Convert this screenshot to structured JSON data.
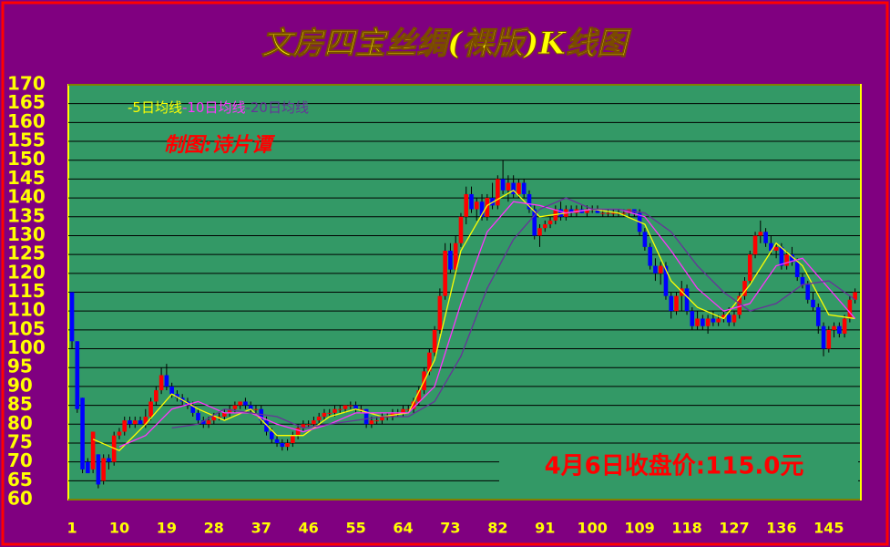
{
  "chart_data": {
    "type": "candlestick",
    "title": "文房四宝丝绸(裸版)K线图",
    "credit": "制图:诗片谭",
    "annotation": "4月6日收盘价:115.0元",
    "up_color": "#ff0000",
    "down_color": "#0000ff",
    "grid": true,
    "xlim": [
      0.3,
      151.1
    ],
    "xticks": [
      1,
      10,
      19,
      28,
      37,
      46,
      55,
      64,
      73,
      82,
      91,
      100,
      109,
      118,
      127,
      136,
      145
    ],
    "ylim": [
      60,
      170
    ],
    "yticks": [
      60,
      65,
      70,
      75,
      80,
      85,
      90,
      95,
      100,
      105,
      110,
      115,
      120,
      125,
      130,
      135,
      140,
      145,
      150,
      155,
      160,
      165,
      170
    ],
    "candles": [
      [
        115,
        115,
        100,
        102
      ],
      [
        102,
        102,
        83,
        84
      ],
      [
        87,
        87,
        67,
        68
      ],
      [
        70,
        71,
        67,
        67
      ],
      [
        68,
        78,
        67,
        78
      ],
      [
        72,
        72,
        63,
        64
      ],
      [
        65,
        72,
        64,
        71
      ],
      [
        71,
        72,
        68,
        70
      ],
      [
        70,
        78,
        69,
        77
      ],
      [
        77,
        79,
        76,
        78
      ],
      [
        78,
        82,
        77,
        81
      ],
      [
        81,
        82,
        79,
        80
      ],
      [
        80,
        82,
        79,
        81
      ],
      [
        81,
        82,
        80,
        80
      ],
      [
        80,
        84,
        79,
        82
      ],
      [
        82,
        87,
        81,
        86
      ],
      [
        86,
        90,
        85,
        89
      ],
      [
        89,
        95,
        88,
        93
      ],
      [
        93,
        96,
        89,
        90
      ],
      [
        90,
        91,
        87,
        88
      ],
      [
        88,
        89,
        86,
        87
      ],
      [
        87,
        88,
        85,
        86
      ],
      [
        86,
        87,
        84,
        85
      ],
      [
        85,
        86,
        82,
        83
      ],
      [
        83,
        84,
        80,
        81
      ],
      [
        81,
        82,
        79,
        80
      ],
      [
        80,
        82,
        79,
        81
      ],
      [
        81,
        83,
        80,
        82
      ],
      [
        82,
        83,
        81,
        82
      ],
      [
        82,
        84,
        81,
        83
      ],
      [
        83,
        85,
        82,
        84
      ],
      [
        84,
        86,
        83,
        85
      ],
      [
        85,
        86,
        84,
        86
      ],
      [
        86,
        87,
        84,
        85
      ],
      [
        85,
        86,
        83,
        84
      ],
      [
        84,
        85,
        83,
        84
      ],
      [
        84,
        85,
        80,
        81
      ],
      [
        81,
        82,
        77,
        78
      ],
      [
        78,
        79,
        75,
        76
      ],
      [
        76,
        77,
        74,
        75
      ],
      [
        75,
        76,
        73,
        74
      ],
      [
        74,
        76,
        73,
        75
      ],
      [
        75,
        78,
        74,
        77
      ],
      [
        77,
        80,
        76,
        79
      ],
      [
        79,
        81,
        78,
        80
      ],
      [
        80,
        81,
        79,
        80
      ],
      [
        80,
        82,
        79,
        81
      ],
      [
        81,
        83,
        80,
        82
      ],
      [
        82,
        84,
        81,
        83
      ],
      [
        83,
        84,
        82,
        83
      ],
      [
        83,
        85,
        82,
        84
      ],
      [
        84,
        85,
        83,
        84
      ],
      [
        84,
        85,
        83,
        85
      ],
      [
        85,
        86,
        84,
        85
      ],
      [
        85,
        86,
        83,
        84
      ],
      [
        84,
        85,
        83,
        84
      ],
      [
        84,
        84,
        79,
        80
      ],
      [
        80,
        82,
        79,
        81
      ],
      [
        81,
        82,
        80,
        81
      ],
      [
        81,
        83,
        80,
        82
      ],
      [
        82,
        83,
        81,
        82
      ],
      [
        82,
        84,
        81,
        83
      ],
      [
        83,
        84,
        82,
        83
      ],
      [
        83,
        85,
        82,
        84
      ],
      [
        84,
        85,
        83,
        84
      ],
      [
        84,
        87,
        83,
        86
      ],
      [
        86,
        90,
        85,
        89
      ],
      [
        89,
        95,
        88,
        94
      ],
      [
        94,
        100,
        93,
        99
      ],
      [
        99,
        106,
        98,
        105
      ],
      [
        105,
        116,
        104,
        114
      ],
      [
        114,
        128,
        113,
        126
      ],
      [
        126,
        128,
        120,
        121
      ],
      [
        121,
        130,
        120,
        128
      ],
      [
        128,
        136,
        127,
        135
      ],
      [
        135,
        143,
        133,
        141
      ],
      [
        141,
        143,
        136,
        137
      ],
      [
        137,
        140,
        134,
        139
      ],
      [
        139,
        141,
        134,
        135
      ],
      [
        135,
        141,
        134,
        140
      ],
      [
        140,
        144,
        137,
        138
      ],
      [
        138,
        146,
        137,
        145
      ],
      [
        145,
        150,
        141,
        142
      ],
      [
        142,
        146,
        139,
        144
      ],
      [
        144,
        146,
        140,
        141
      ],
      [
        141,
        145,
        140,
        144
      ],
      [
        144,
        145,
        140,
        141
      ],
      [
        141,
        142,
        136,
        137
      ],
      [
        137,
        138,
        129,
        130
      ],
      [
        130,
        133,
        127,
        132
      ],
      [
        132,
        134,
        131,
        133
      ],
      [
        133,
        135,
        132,
        134
      ],
      [
        134,
        138,
        133,
        137
      ],
      [
        137,
        139,
        134,
        135
      ],
      [
        135,
        138,
        134,
        137
      ],
      [
        137,
        138,
        135,
        136
      ],
      [
        136,
        138,
        135,
        137
      ],
      [
        137,
        138,
        136,
        136
      ],
      [
        136,
        138,
        135,
        137
      ],
      [
        137,
        138,
        136,
        137
      ],
      [
        137,
        138,
        136,
        136
      ],
      [
        136,
        137,
        135,
        136
      ],
      [
        136,
        137,
        135,
        136
      ],
      [
        136,
        137,
        135,
        136
      ],
      [
        136,
        137,
        135,
        136
      ],
      [
        136,
        137,
        135,
        136
      ],
      [
        136,
        137,
        135,
        137
      ],
      [
        137,
        137,
        135,
        136
      ],
      [
        136,
        137,
        130,
        131
      ],
      [
        131,
        132,
        126,
        127
      ],
      [
        127,
        128,
        121,
        122
      ],
      [
        122,
        124,
        118,
        120
      ],
      [
        120,
        123,
        117,
        122
      ],
      [
        122,
        123,
        113,
        114
      ],
      [
        114,
        115,
        108,
        110
      ],
      [
        110,
        115,
        109,
        114
      ],
      [
        114,
        118,
        110,
        116
      ],
      [
        116,
        117,
        109,
        110
      ],
      [
        110,
        111,
        105,
        106
      ],
      [
        106,
        110,
        105,
        108
      ],
      [
        108,
        109,
        105,
        106
      ],
      [
        106,
        109,
        104,
        108
      ],
      [
        108,
        110,
        106,
        107
      ],
      [
        107,
        109,
        106,
        108
      ],
      [
        108,
        110,
        107,
        109
      ],
      [
        109,
        111,
        106,
        107
      ],
      [
        107,
        110,
        106,
        109
      ],
      [
        109,
        115,
        108,
        114
      ],
      [
        114,
        119,
        113,
        118
      ],
      [
        118,
        126,
        117,
        125
      ],
      [
        125,
        131,
        124,
        130
      ],
      [
        130,
        134,
        128,
        131
      ],
      [
        131,
        132,
        127,
        128
      ],
      [
        128,
        130,
        125,
        126
      ],
      [
        126,
        128,
        124,
        127
      ],
      [
        127,
        128,
        121,
        122
      ],
      [
        122,
        126,
        121,
        125
      ],
      [
        125,
        127,
        122,
        123
      ],
      [
        123,
        124,
        118,
        119
      ],
      [
        119,
        120,
        116,
        117
      ],
      [
        117,
        118,
        112,
        113
      ],
      [
        113,
        115,
        110,
        111
      ],
      [
        111,
        112,
        104,
        106
      ],
      [
        106,
        107,
        98,
        100
      ],
      [
        100,
        106,
        99,
        105
      ],
      [
        105,
        107,
        103,
        106
      ],
      [
        106,
        107,
        103,
        104
      ],
      [
        104,
        109,
        103,
        108
      ],
      [
        108,
        114,
        107,
        113
      ],
      [
        113,
        116,
        112,
        115
      ]
    ],
    "series": [
      {
        "name": "-5日均线",
        "color": "#ffff00",
        "x": [
          5,
          10,
          15,
          20,
          25,
          30,
          35,
          40,
          45,
          50,
          55,
          60,
          65,
          70,
          75,
          80,
          85,
          90,
          95,
          100,
          105,
          110,
          115,
          120,
          125,
          130,
          135,
          140,
          145,
          150
        ],
        "values": [
          76,
          73,
          80,
          88,
          84,
          81,
          84,
          77,
          77,
          82,
          84,
          82,
          83,
          97,
          126,
          138,
          142,
          135,
          136,
          137,
          136,
          133,
          118,
          111,
          108,
          117,
          128,
          122,
          109,
          108
        ]
      },
      {
        "name": "-10日均线",
        "color": "#ff33ff",
        "x": [
          10,
          15,
          20,
          25,
          30,
          35,
          40,
          45,
          50,
          55,
          60,
          65,
          70,
          75,
          80,
          85,
          90,
          95,
          100,
          105,
          110,
          115,
          120,
          125,
          130,
          135,
          140,
          145,
          150
        ],
        "values": [
          74,
          77,
          84,
          86,
          83,
          83,
          80,
          78,
          80,
          83,
          83,
          83,
          90,
          112,
          131,
          139,
          138,
          136,
          137,
          137,
          135,
          126,
          116,
          110,
          112,
          122,
          124,
          116,
          108
        ]
      },
      {
        "name": "-20日均线",
        "color": "#663399",
        "x": [
          20,
          25,
          30,
          35,
          40,
          45,
          50,
          55,
          60,
          65,
          70,
          75,
          80,
          85,
          90,
          95,
          100,
          105,
          110,
          115,
          120,
          125,
          130,
          135,
          140,
          145,
          150
        ],
        "values": [
          79,
          80,
          84,
          83,
          82,
          79,
          80,
          81,
          82,
          82,
          86,
          98,
          116,
          129,
          137,
          140,
          137,
          137,
          136,
          131,
          122,
          115,
          110,
          112,
          117,
          118,
          113
        ]
      }
    ]
  }
}
